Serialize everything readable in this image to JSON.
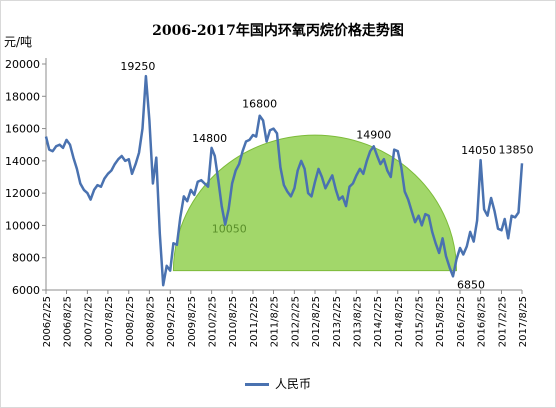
{
  "chart_data": {
    "type": "line",
    "title": "2006-2017年国内环氧丙烷价格走势图",
    "ylabel": "元/吨",
    "xlabel": "",
    "ylim": [
      6000,
      20000
    ],
    "yticks": [
      6000,
      8000,
      10000,
      12000,
      14000,
      16000,
      18000,
      20000
    ],
    "xrange": [
      "2006-02-25",
      "2017-08-25"
    ],
    "xticks": [
      "2006/2/25",
      "2006/8/25",
      "2007/2/25",
      "2007/8/25",
      "2008/2/25",
      "2008/8/25",
      "2009/2/25",
      "2009/8/25",
      "2010/2/25",
      "2010/8/25",
      "2011/2/25",
      "2011/8/25",
      "2012/2/25",
      "2012/8/25",
      "2013/2/25",
      "2013/8/25",
      "2014/2/25",
      "2014/8/25",
      "2015/2/25",
      "2015/8/25",
      "2016/2/25",
      "2016/8/25",
      "2017/2/25",
      "2017/8/25"
    ],
    "grid": false,
    "legend_position": "bottom",
    "series": [
      {
        "name": "人民币",
        "color": "#4a72b0",
        "points": [
          [
            "2006-02-25",
            15500
          ],
          [
            "2006-03-25",
            14700
          ],
          [
            "2006-04-25",
            14600
          ],
          [
            "2006-05-25",
            14900
          ],
          [
            "2006-06-25",
            15000
          ],
          [
            "2006-07-25",
            14800
          ],
          [
            "2006-08-25",
            15300
          ],
          [
            "2006-09-25",
            15000
          ],
          [
            "2006-10-25",
            14200
          ],
          [
            "2006-11-25",
            13500
          ],
          [
            "2006-12-25",
            12600
          ],
          [
            "2007-01-25",
            12200
          ],
          [
            "2007-02-25",
            12000
          ],
          [
            "2007-03-25",
            11600
          ],
          [
            "2007-04-25",
            12200
          ],
          [
            "2007-05-25",
            12500
          ],
          [
            "2007-06-25",
            12400
          ],
          [
            "2007-07-25",
            12900
          ],
          [
            "2007-08-25",
            13200
          ],
          [
            "2007-09-25",
            13400
          ],
          [
            "2007-10-25",
            13800
          ],
          [
            "2007-11-25",
            14100
          ],
          [
            "2007-12-25",
            14300
          ],
          [
            "2008-01-25",
            14000
          ],
          [
            "2008-02-25",
            14100
          ],
          [
            "2008-03-25",
            13200
          ],
          [
            "2008-04-25",
            13800
          ],
          [
            "2008-05-25",
            14500
          ],
          [
            "2008-06-25",
            16000
          ],
          [
            "2008-07-25",
            19250
          ],
          [
            "2008-08-25",
            16500
          ],
          [
            "2008-09-25",
            12600
          ],
          [
            "2008-10-25",
            14200
          ],
          [
            "2008-11-25",
            9500
          ],
          [
            "2008-12-25",
            6300
          ],
          [
            "2009-01-25",
            7500
          ],
          [
            "2009-02-25",
            7200
          ],
          [
            "2009-03-25",
            8900
          ],
          [
            "2009-04-25",
            8800
          ],
          [
            "2009-05-25",
            10500
          ],
          [
            "2009-06-25",
            11800
          ],
          [
            "2009-07-25",
            11500
          ],
          [
            "2009-08-25",
            12200
          ],
          [
            "2009-09-25",
            11900
          ],
          [
            "2009-10-25",
            12700
          ],
          [
            "2009-11-25",
            12800
          ],
          [
            "2009-12-25",
            12600
          ],
          [
            "2010-01-25",
            12400
          ],
          [
            "2010-02-25",
            14800
          ],
          [
            "2010-03-25",
            14300
          ],
          [
            "2010-04-25",
            12800
          ],
          [
            "2010-05-25",
            11200
          ],
          [
            "2010-06-25",
            10050
          ],
          [
            "2010-07-25",
            11000
          ],
          [
            "2010-08-25",
            12600
          ],
          [
            "2010-09-25",
            13400
          ],
          [
            "2010-10-25",
            13800
          ],
          [
            "2010-11-25",
            14600
          ],
          [
            "2010-12-25",
            15200
          ],
          [
            "2011-01-25",
            15300
          ],
          [
            "2011-02-25",
            15600
          ],
          [
            "2011-03-25",
            15500
          ],
          [
            "2011-04-25",
            16800
          ],
          [
            "2011-05-25",
            16500
          ],
          [
            "2011-06-25",
            15200
          ],
          [
            "2011-07-25",
            15900
          ],
          [
            "2011-08-25",
            16000
          ],
          [
            "2011-09-25",
            15700
          ],
          [
            "2011-10-25",
            13600
          ],
          [
            "2011-11-25",
            12500
          ],
          [
            "2011-12-25",
            12100
          ],
          [
            "2012-01-25",
            11800
          ],
          [
            "2012-02-25",
            12300
          ],
          [
            "2012-03-25",
            13400
          ],
          [
            "2012-04-25",
            14000
          ],
          [
            "2012-05-25",
            13500
          ],
          [
            "2012-06-25",
            12000
          ],
          [
            "2012-07-25",
            11800
          ],
          [
            "2012-08-25",
            12700
          ],
          [
            "2012-09-25",
            13500
          ],
          [
            "2012-10-25",
            13000
          ],
          [
            "2012-11-25",
            12300
          ],
          [
            "2012-12-25",
            12700
          ],
          [
            "2013-01-25",
            13100
          ],
          [
            "2013-02-25",
            12200
          ],
          [
            "2013-03-25",
            11600
          ],
          [
            "2013-04-25",
            11800
          ],
          [
            "2013-05-25",
            11200
          ],
          [
            "2013-06-25",
            12400
          ],
          [
            "2013-07-25",
            12600
          ],
          [
            "2013-08-25",
            13100
          ],
          [
            "2013-09-25",
            13500
          ],
          [
            "2013-10-25",
            13200
          ],
          [
            "2013-11-25",
            14000
          ],
          [
            "2013-12-25",
            14600
          ],
          [
            "2014-01-25",
            14900
          ],
          [
            "2014-02-25",
            14300
          ],
          [
            "2014-03-25",
            13800
          ],
          [
            "2014-04-25",
            14100
          ],
          [
            "2014-05-25",
            13400
          ],
          [
            "2014-06-25",
            13000
          ],
          [
            "2014-07-25",
            14700
          ],
          [
            "2014-08-25",
            14600
          ],
          [
            "2014-09-25",
            13600
          ],
          [
            "2014-10-25",
            12100
          ],
          [
            "2014-11-25",
            11600
          ],
          [
            "2014-12-25",
            10900
          ],
          [
            "2015-01-25",
            10200
          ],
          [
            "2015-02-25",
            10600
          ],
          [
            "2015-03-25",
            10000
          ],
          [
            "2015-04-25",
            10700
          ],
          [
            "2015-05-25",
            10600
          ],
          [
            "2015-06-25",
            9600
          ],
          [
            "2015-07-25",
            8900
          ],
          [
            "2015-08-25",
            8300
          ],
          [
            "2015-09-25",
            9200
          ],
          [
            "2015-10-25",
            8100
          ],
          [
            "2015-11-25",
            7400
          ],
          [
            "2015-12-25",
            6850
          ],
          [
            "2016-01-25",
            7900
          ],
          [
            "2016-02-25",
            8600
          ],
          [
            "2016-03-25",
            8200
          ],
          [
            "2016-04-25",
            8700
          ],
          [
            "2016-05-25",
            9600
          ],
          [
            "2016-06-25",
            9000
          ],
          [
            "2016-07-25",
            10300
          ],
          [
            "2016-08-25",
            14050
          ],
          [
            "2016-09-25",
            11000
          ],
          [
            "2016-10-25",
            10600
          ],
          [
            "2016-11-25",
            11700
          ],
          [
            "2016-12-25",
            10900
          ],
          [
            "2017-01-25",
            9800
          ],
          [
            "2017-02-25",
            9700
          ],
          [
            "2017-03-25",
            10400
          ],
          [
            "2017-04-25",
            9200
          ],
          [
            "2017-05-25",
            10600
          ],
          [
            "2017-06-25",
            10500
          ],
          [
            "2017-07-25",
            10800
          ],
          [
            "2017-08-25",
            13850
          ]
        ]
      }
    ],
    "annotations": [
      {
        "text": "19250",
        "x": "2008-07-25",
        "y": 19250
      },
      {
        "text": "16800",
        "x": "2011-04-25",
        "y": 16800
      },
      {
        "text": "14800",
        "x": "2010-02-25",
        "y": 14800
      },
      {
        "text": "14900",
        "x": "2014-01-25",
        "y": 14900
      },
      {
        "text": "14050",
        "x": "2016-08-25",
        "y": 14050
      },
      {
        "text": "13850",
        "x": "2017-08-25",
        "y": 13850
      },
      {
        "text": "10050",
        "x": "2010-06-25",
        "y": 10050
      },
      {
        "text": "6850",
        "x": "2015-12-25",
        "y": 6850
      }
    ],
    "highlight_region": {
      "shape": "semicircle",
      "color": "#92d050",
      "start": "2009-03-25",
      "end": "2016-01-25",
      "base": 7200,
      "peak": 15600
    }
  }
}
